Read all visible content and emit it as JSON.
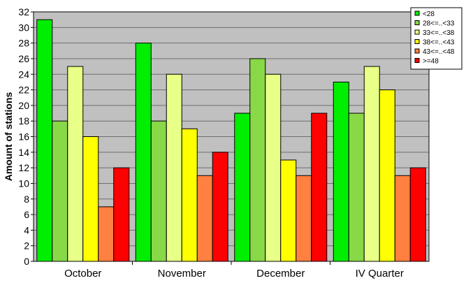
{
  "chart_data": {
    "type": "bar",
    "title": "",
    "xlabel": "",
    "ylabel": "Amount of stations",
    "ylim": [
      0,
      32
    ],
    "ytick_step": 2,
    "grid": true,
    "legend_position": "top-right",
    "plot_background": "#c0c0c0",
    "categories": [
      "October",
      "November",
      "December",
      "IV Quarter"
    ],
    "series": [
      {
        "name": "<28",
        "color": "#00ee00",
        "values": [
          31,
          28,
          19,
          23
        ]
      },
      {
        "name": "28<=..<33",
        "color": "#88d848",
        "values": [
          18,
          18,
          26,
          19
        ]
      },
      {
        "name": "33<=..<38",
        "color": "#e8ff88",
        "values": [
          25,
          24,
          24,
          25
        ]
      },
      {
        "name": "38<=..<43",
        "color": "#ffff00",
        "values": [
          16,
          17,
          13,
          22
        ]
      },
      {
        "name": "43<=..<48",
        "color": "#ff8040",
        "values": [
          7,
          11,
          11,
          11
        ]
      },
      {
        "name": ">=48",
        "color": "#ff0000",
        "values": [
          12,
          14,
          19,
          12
        ]
      }
    ]
  }
}
